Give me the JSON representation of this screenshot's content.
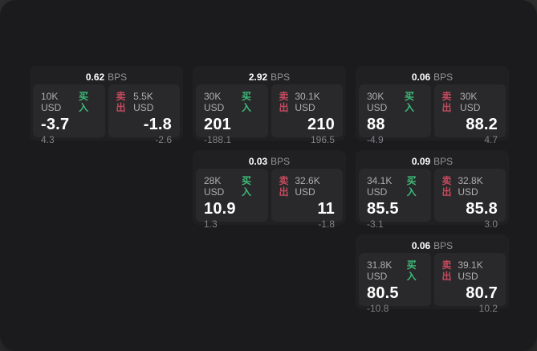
{
  "labels": {
    "bps_unit": "BPS",
    "buy": "买入",
    "sell": "卖出"
  },
  "colors": {
    "outer_background": "#2f2f2f",
    "window_background": "#1b1b1d",
    "card_background": "#202022",
    "panel_background": "#29292b",
    "buy_green": "#3dbb78",
    "sell_red": "#c64a5e"
  },
  "cards": [
    {
      "bps": "0.62",
      "buy": {
        "amount": "10K USD",
        "price": "-3.7",
        "delta": "4.3"
      },
      "sell": {
        "amount": "5.5K USD",
        "price": "-1.8",
        "delta": "-2.6"
      }
    },
    {
      "bps": "2.92",
      "buy": {
        "amount": "30K USD",
        "price": "201",
        "delta": "-188.1"
      },
      "sell": {
        "amount": "30.1K USD",
        "price": "210",
        "delta": "196.5"
      }
    },
    {
      "bps": "0.06",
      "buy": {
        "amount": "30K USD",
        "price": "88",
        "delta": "-4.9"
      },
      "sell": {
        "amount": "30K USD",
        "price": "88.2",
        "delta": "4.7"
      }
    },
    {
      "bps": "0.03",
      "buy": {
        "amount": "28K USD",
        "price": "10.9",
        "delta": "1.3"
      },
      "sell": {
        "amount": "32.6K USD",
        "price": "11",
        "delta": "-1.8"
      }
    },
    {
      "bps": "0.09",
      "buy": {
        "amount": "34.1K USD",
        "price": "85.5",
        "delta": "-3.1"
      },
      "sell": {
        "amount": "32.8K USD",
        "price": "85.8",
        "delta": "3.0"
      }
    },
    {
      "bps": "0.06",
      "buy": {
        "amount": "31.8K USD",
        "price": "80.5",
        "delta": "-10.8"
      },
      "sell": {
        "amount": "39.1K USD",
        "price": "80.7",
        "delta": "10.2"
      }
    }
  ]
}
